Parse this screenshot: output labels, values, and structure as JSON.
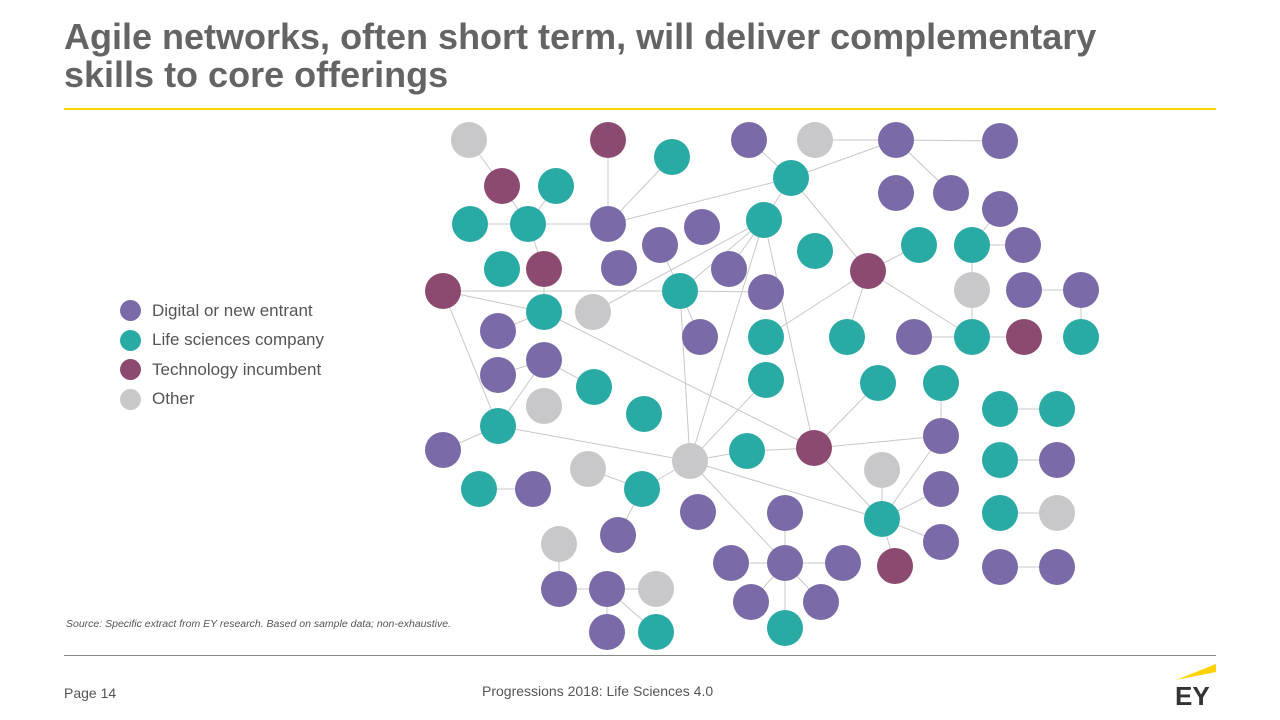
{
  "header": {
    "title": "Agile networks, often short term, will deliver complementary skills to core offerings"
  },
  "legend": {
    "items": [
      {
        "label": "Digital or new entrant",
        "color": "#7b6aa8"
      },
      {
        "label": "Life sciences company",
        "color": "#2aaaa4"
      },
      {
        "label": "Technology incumbent",
        "color": "#8c4a70"
      },
      {
        "label": "Other",
        "color": "#c8c8ca"
      }
    ]
  },
  "source": "Source: Specific extract from EY research. Based on sample data; non-exhaustive.",
  "footer": {
    "page": "Page 14",
    "publication": "Progressions 2018: Life Sciences 4.0",
    "logo": "EY"
  }
}
